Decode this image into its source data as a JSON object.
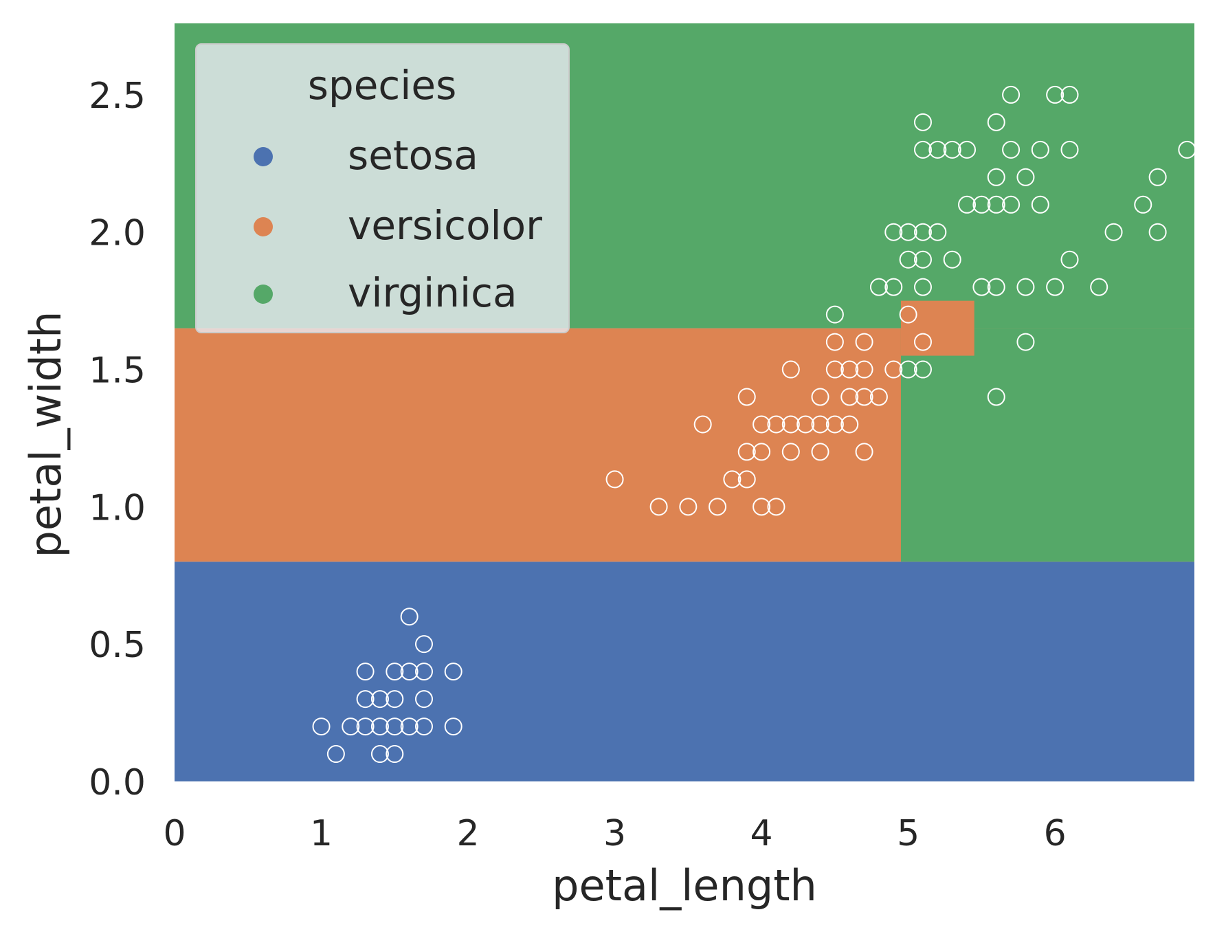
{
  "chart_data": {
    "type": "scatter",
    "xlabel": "petal_length",
    "ylabel": "petal_width",
    "xlim": [
      0,
      6.95
    ],
    "ylim": [
      0,
      2.76
    ],
    "xticks": [
      0,
      1,
      2,
      3,
      4,
      5,
      6
    ],
    "xtick_labels": [
      "0",
      "1",
      "2",
      "3",
      "4",
      "5",
      "6"
    ],
    "yticks": [
      0.0,
      0.5,
      1.0,
      1.5,
      2.0,
      2.5
    ],
    "ytick_labels": [
      "0.0",
      "0.5",
      "1.0",
      "1.5",
      "2.0",
      "2.5"
    ],
    "grid": false,
    "colors": {
      "setosa": "#4c72b0",
      "versicolor": "#dd8452",
      "virginica": "#55a868",
      "marker_edge": "#ffffff"
    },
    "legend": {
      "title": "species",
      "placement": "upper-left",
      "entries": [
        "setosa",
        "versicolor",
        "virginica"
      ]
    },
    "decision_regions": [
      {
        "class": "setosa",
        "x": [
          0,
          6.95
        ],
        "y": [
          0,
          0.8
        ]
      },
      {
        "class": "versicolor",
        "x": [
          0,
          6.95
        ],
        "y": [
          0.8,
          1.65
        ]
      },
      {
        "class": "virginica",
        "x": [
          0,
          6.95
        ],
        "y": [
          1.65,
          2.76
        ]
      },
      {
        "class": "virginica",
        "x": [
          4.95,
          6.95
        ],
        "y": [
          0.8,
          1.65
        ]
      },
      {
        "class": "versicolor",
        "x": [
          4.95,
          5.45
        ],
        "y": [
          1.55,
          1.75
        ]
      }
    ],
    "points": [
      [
        1.0,
        0.2
      ],
      [
        1.1,
        0.1
      ],
      [
        1.2,
        0.2
      ],
      [
        1.3,
        0.2
      ],
      [
        1.3,
        0.3
      ],
      [
        1.3,
        0.4
      ],
      [
        1.4,
        0.1
      ],
      [
        1.4,
        0.2
      ],
      [
        1.4,
        0.3
      ],
      [
        1.5,
        0.1
      ],
      [
        1.5,
        0.2
      ],
      [
        1.5,
        0.3
      ],
      [
        1.5,
        0.4
      ],
      [
        1.6,
        0.2
      ],
      [
        1.6,
        0.4
      ],
      [
        1.6,
        0.6
      ],
      [
        1.7,
        0.2
      ],
      [
        1.7,
        0.3
      ],
      [
        1.7,
        0.4
      ],
      [
        1.7,
        0.5
      ],
      [
        1.9,
        0.2
      ],
      [
        1.9,
        0.4
      ],
      [
        3.0,
        1.1
      ],
      [
        3.3,
        1.0
      ],
      [
        3.5,
        1.0
      ],
      [
        3.6,
        1.3
      ],
      [
        3.7,
        1.0
      ],
      [
        3.8,
        1.1
      ],
      [
        3.9,
        1.1
      ],
      [
        3.9,
        1.2
      ],
      [
        3.9,
        1.4
      ],
      [
        4.0,
        1.0
      ],
      [
        4.0,
        1.2
      ],
      [
        4.0,
        1.3
      ],
      [
        4.1,
        1.0
      ],
      [
        4.1,
        1.3
      ],
      [
        4.2,
        1.2
      ],
      [
        4.2,
        1.3
      ],
      [
        4.2,
        1.5
      ],
      [
        4.3,
        1.3
      ],
      [
        4.4,
        1.2
      ],
      [
        4.4,
        1.3
      ],
      [
        4.4,
        1.4
      ],
      [
        4.5,
        1.3
      ],
      [
        4.5,
        1.5
      ],
      [
        4.5,
        1.6
      ],
      [
        4.5,
        1.7
      ],
      [
        4.6,
        1.3
      ],
      [
        4.6,
        1.4
      ],
      [
        4.6,
        1.5
      ],
      [
        4.7,
        1.2
      ],
      [
        4.7,
        1.4
      ],
      [
        4.7,
        1.5
      ],
      [
        4.7,
        1.6
      ],
      [
        4.8,
        1.4
      ],
      [
        4.8,
        1.8
      ],
      [
        4.9,
        1.5
      ],
      [
        4.9,
        1.8
      ],
      [
        4.9,
        2.0
      ],
      [
        5.0,
        1.5
      ],
      [
        5.0,
        1.7
      ],
      [
        5.0,
        1.9
      ],
      [
        5.0,
        2.0
      ],
      [
        5.1,
        1.5
      ],
      [
        5.1,
        1.6
      ],
      [
        5.1,
        1.8
      ],
      [
        5.1,
        1.9
      ],
      [
        5.1,
        2.0
      ],
      [
        5.1,
        2.3
      ],
      [
        5.1,
        2.4
      ],
      [
        5.2,
        2.0
      ],
      [
        5.2,
        2.3
      ],
      [
        5.3,
        1.9
      ],
      [
        5.3,
        2.3
      ],
      [
        5.4,
        2.1
      ],
      [
        5.4,
        2.3
      ],
      [
        5.5,
        1.8
      ],
      [
        5.5,
        2.1
      ],
      [
        5.6,
        1.4
      ],
      [
        5.6,
        1.8
      ],
      [
        5.6,
        2.1
      ],
      [
        5.6,
        2.2
      ],
      [
        5.6,
        2.4
      ],
      [
        5.7,
        2.1
      ],
      [
        5.7,
        2.3
      ],
      [
        5.7,
        2.5
      ],
      [
        5.8,
        1.6
      ],
      [
        5.8,
        1.8
      ],
      [
        5.8,
        2.2
      ],
      [
        5.9,
        2.1
      ],
      [
        5.9,
        2.3
      ],
      [
        6.0,
        1.8
      ],
      [
        6.0,
        2.5
      ],
      [
        6.1,
        1.9
      ],
      [
        6.1,
        2.3
      ],
      [
        6.1,
        2.5
      ],
      [
        6.3,
        1.8
      ],
      [
        6.4,
        2.0
      ],
      [
        6.6,
        2.1
      ],
      [
        6.7,
        2.0
      ],
      [
        6.7,
        2.2
      ],
      [
        6.9,
        2.3
      ]
    ]
  }
}
